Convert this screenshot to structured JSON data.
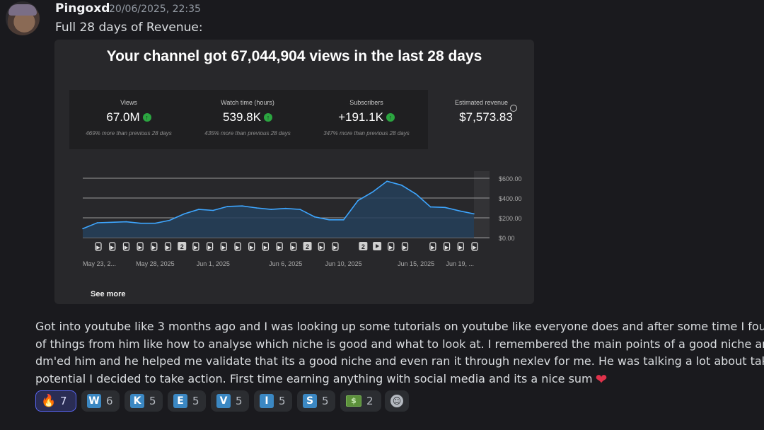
{
  "message": {
    "author": "Pingoxd",
    "timestamp": "20/06/2025, 22:35",
    "first_line": "Full 28 days of Revenue:",
    "body_lines": [
      "Got into youtube like 3 months ago and I was looking up some tutorials on youtube like everyone does and after some time I found Kevis w",
      "of things from him like how to analyse which niche is good and what to look at. I remembered the main points of a good niche and found s",
      "dm'ed him and he helped me validate that its a good niche and even ran it through nexlev for me. He was talking a lot about taking action l",
      "potential I decided to take action. First time earning anything with social media and its a nice sum"
    ],
    "end_emoji": "heart-icon"
  },
  "embed": {
    "title": "Your channel got 67,044,904 views in the last 28 days",
    "stats": [
      {
        "label": "Views",
        "value": "67.0M",
        "note": "469% more than previous 28 days"
      },
      {
        "label": "Watch time (hours)",
        "value": "539.8K",
        "note": "435% more than previous 28 days"
      },
      {
        "label": "Subscribers",
        "value": "+191.1K",
        "note": "347% more than previous 28 days"
      }
    ],
    "revenue": {
      "label": "Estimated revenue",
      "value": "$7,573.83"
    },
    "see_more": "See more"
  },
  "chart_data": {
    "type": "area",
    "y_tick_labels": [
      "$600.00",
      "$400.00",
      "$200.00",
      "$0.00"
    ],
    "y_ticks": [
      600,
      400,
      200,
      0
    ],
    "ylim": [
      0,
      600
    ],
    "x_tick_labels": [
      "May 23, 2...",
      "May 28, 2025",
      "Jun 1, 2025",
      "Jun 6, 2025",
      "Jun 10, 2025",
      "Jun 15, 2025",
      "Jun 19, ..."
    ],
    "x_tick_index": [
      0,
      5,
      9,
      14,
      18,
      23,
      27
    ],
    "values": [
      90,
      150,
      155,
      160,
      145,
      145,
      175,
      240,
      285,
      275,
      315,
      320,
      300,
      285,
      295,
      285,
      210,
      180,
      180,
      375,
      460,
      570,
      530,
      440,
      310,
      305,
      270,
      240
    ],
    "grid": true,
    "line_color": "#3ea6ff",
    "fill_color": "#24405a",
    "marker_glyphs": [
      "short",
      "short",
      "short",
      "short",
      "short",
      "short",
      "num",
      "short",
      "short",
      "short",
      "short",
      "short",
      "short",
      "short",
      "short",
      "num",
      "short",
      "short",
      "",
      "num",
      "video",
      "short",
      "short",
      "",
      "short",
      "short",
      "short",
      "short"
    ],
    "marker_num_label": "2"
  },
  "reactions": [
    {
      "emoji": "fire-icon",
      "glyph": "🔥",
      "count": "7",
      "active": true
    },
    {
      "emoji": "regional-w-icon",
      "glyph": "W",
      "count": "6"
    },
    {
      "emoji": "regional-k-icon",
      "glyph": "K",
      "count": "5"
    },
    {
      "emoji": "regional-e-icon",
      "glyph": "E",
      "count": "5"
    },
    {
      "emoji": "regional-v-icon",
      "glyph": "V",
      "count": "5"
    },
    {
      "emoji": "regional-i-icon",
      "glyph": "I",
      "count": "5"
    },
    {
      "emoji": "regional-s-icon",
      "glyph": "S",
      "count": "5"
    },
    {
      "emoji": "money-icon",
      "glyph": "$",
      "count": "2"
    }
  ],
  "colors": {
    "background": "#1a1a1e",
    "accent": "#5865f2",
    "chart_line": "#3ea6ff",
    "positive": "#2ba640"
  }
}
